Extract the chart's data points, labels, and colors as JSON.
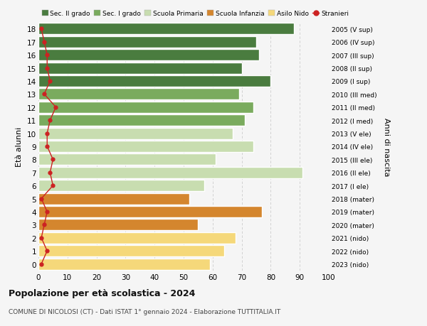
{
  "ages": [
    18,
    17,
    16,
    15,
    14,
    13,
    12,
    11,
    10,
    9,
    8,
    7,
    6,
    5,
    4,
    3,
    2,
    1,
    0
  ],
  "right_labels": [
    "2005 (V sup)",
    "2006 (IV sup)",
    "2007 (III sup)",
    "2008 (II sup)",
    "2009 (I sup)",
    "2010 (III med)",
    "2011 (II med)",
    "2012 (I med)",
    "2013 (V ele)",
    "2014 (IV ele)",
    "2015 (III ele)",
    "2016 (II ele)",
    "2017 (I ele)",
    "2018 (mater)",
    "2019 (mater)",
    "2020 (mater)",
    "2021 (nido)",
    "2022 (nido)",
    "2023 (nido)"
  ],
  "bar_values": [
    88,
    75,
    76,
    70,
    80,
    69,
    74,
    71,
    67,
    74,
    61,
    91,
    57,
    52,
    77,
    55,
    68,
    64,
    59
  ],
  "bar_colors": [
    "#4a7c3f",
    "#4a7c3f",
    "#4a7c3f",
    "#4a7c3f",
    "#4a7c3f",
    "#7aab5e",
    "#7aab5e",
    "#7aab5e",
    "#c8ddb0",
    "#c8ddb0",
    "#c8ddb0",
    "#c8ddb0",
    "#c8ddb0",
    "#d4862e",
    "#d4862e",
    "#d4862e",
    "#f5d87a",
    "#f5d87a",
    "#f5d87a"
  ],
  "stranieri_values": [
    1,
    2,
    3,
    3,
    4,
    2,
    6,
    4,
    3,
    3,
    5,
    4,
    5,
    1,
    3,
    2,
    1,
    3,
    1
  ],
  "legend_labels": [
    "Sec. II grado",
    "Sec. I grado",
    "Scuola Primaria",
    "Scuola Infanzia",
    "Asilo Nido",
    "Stranieri"
  ],
  "legend_colors": [
    "#4a7c3f",
    "#7aab5e",
    "#c8ddb0",
    "#d4862e",
    "#f5d87a",
    "#cc2222"
  ],
  "title": "Popolazione per età scolastica - 2024",
  "subtitle": "COMUNE DI NICOLOSI (CT) - Dati ISTAT 1° gennaio 2024 - Elaborazione TUTTITALIA.IT",
  "ylabel_left": "Età alunni",
  "ylabel_right": "Anni di nascita",
  "xlim": [
    0,
    100
  ],
  "background_color": "#f5f5f5",
  "grid_color": "#cccccc"
}
